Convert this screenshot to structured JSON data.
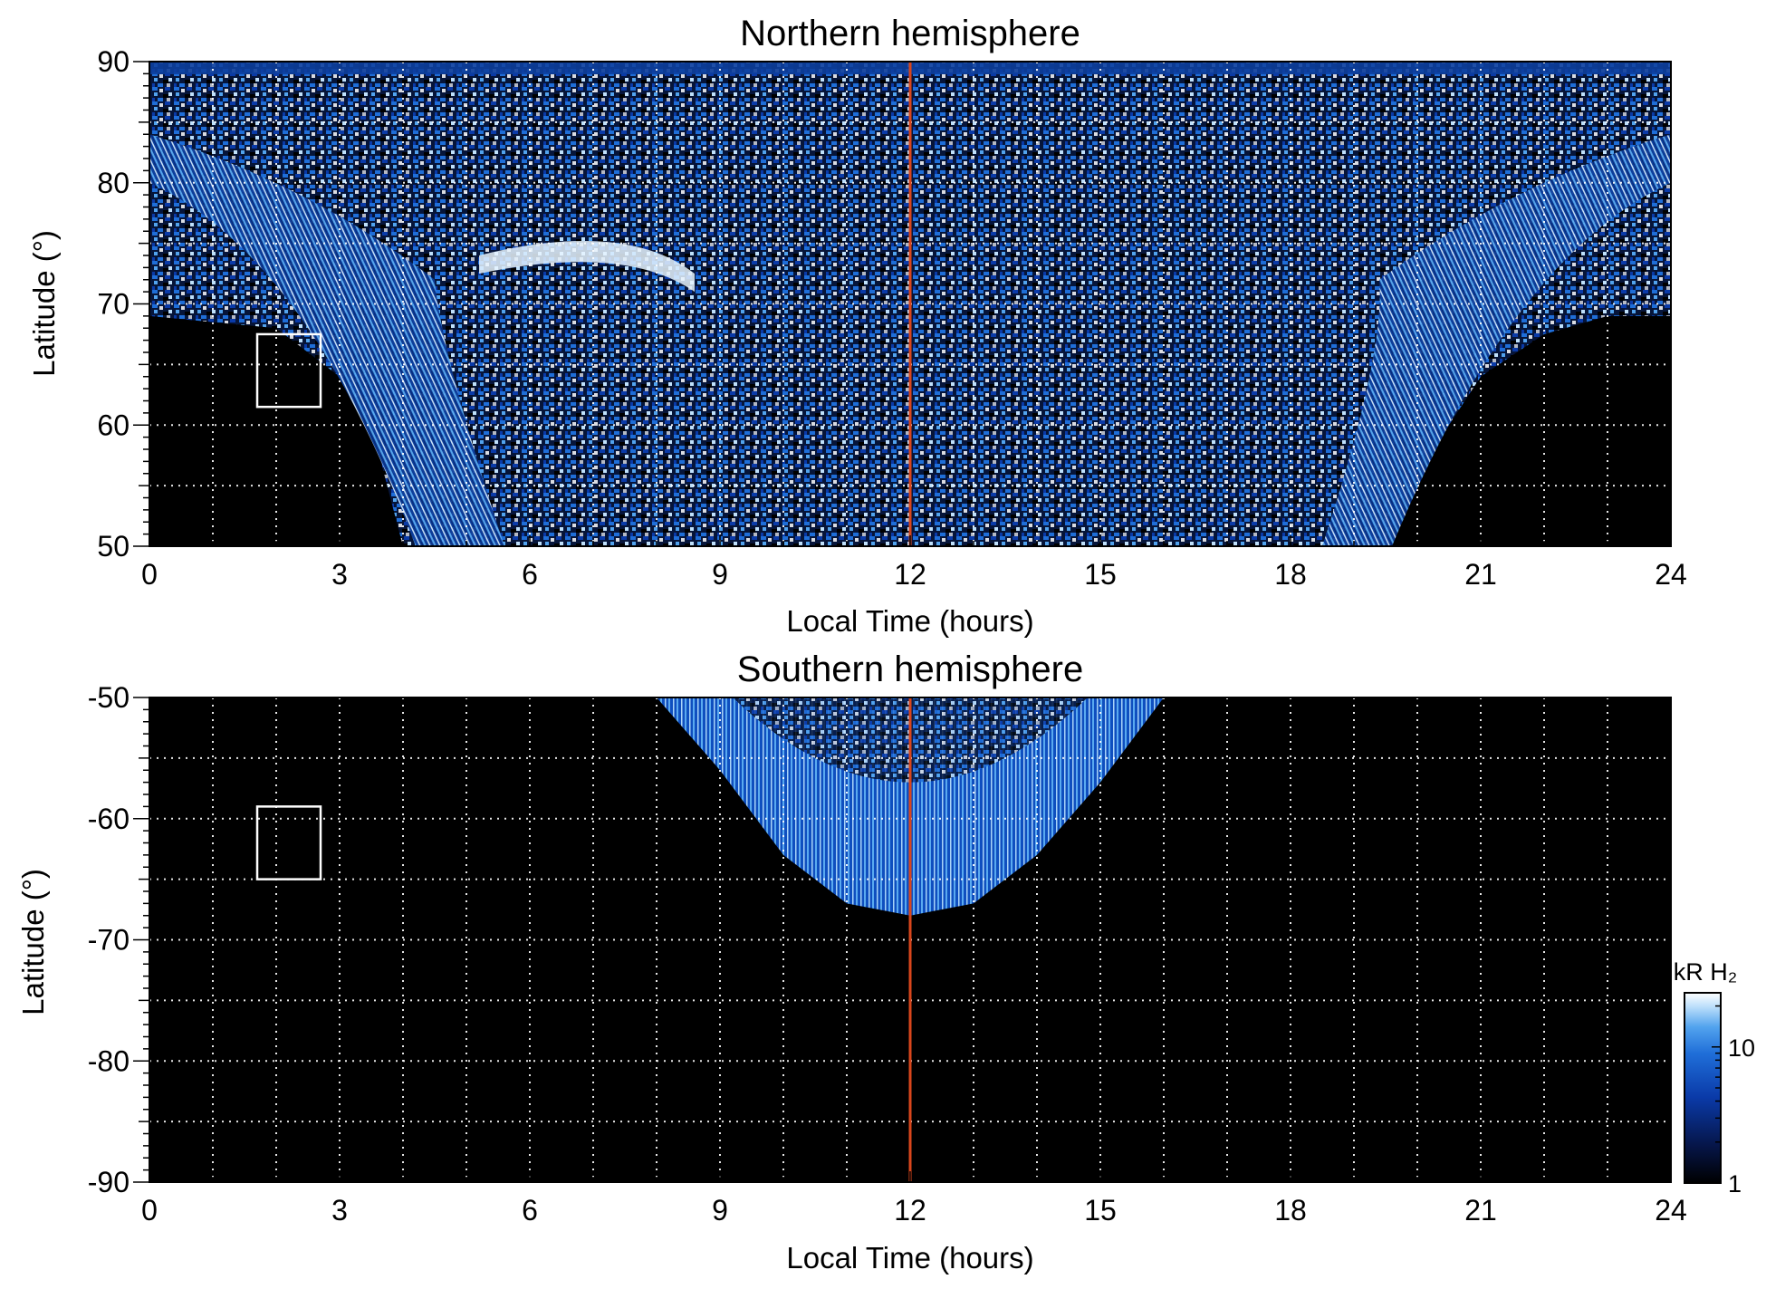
{
  "chart_data": [
    {
      "type": "heatmap",
      "title": "Northern hemisphere",
      "xlabel": "Local Time (hours)",
      "ylabel": "Latitude (°)",
      "xlim": [
        0,
        24
      ],
      "ylim": [
        50,
        90
      ],
      "x_ticks": [
        0,
        3,
        6,
        9,
        12,
        15,
        18,
        21,
        24
      ],
      "y_ticks": [
        50,
        60,
        70,
        80,
        90
      ],
      "grid": true,
      "reference_line": {
        "x": 12,
        "color": "#d9461c"
      },
      "boxes": [
        {
          "x": [
            1.7,
            2.7
          ],
          "y": [
            61.5,
            67.5
          ]
        }
      ],
      "emission_region": {
        "description": "coverage edge latitude vs local time",
        "x": [
          0,
          1,
          2,
          3,
          3.5,
          4,
          5,
          6,
          9,
          12,
          15,
          18,
          19,
          19.5,
          20,
          21,
          22,
          23,
          24
        ],
        "lower_edge_lat": [
          69,
          68.5,
          68,
          64,
          60,
          50,
          50,
          50,
          50,
          50,
          50,
          50,
          50,
          50,
          56,
          64,
          67.5,
          69,
          69
        ]
      }
    },
    {
      "type": "heatmap",
      "title": "Southern hemisphere",
      "xlabel": "Local Time (hours)",
      "ylabel": "Latitude (°)",
      "xlim": [
        0,
        24
      ],
      "ylim": [
        -90,
        -50
      ],
      "x_ticks": [
        0,
        3,
        6,
        9,
        12,
        15,
        18,
        21,
        24
      ],
      "y_ticks": [
        -90,
        -80,
        -70,
        -60,
        -50
      ],
      "grid": true,
      "reference_line": {
        "x": 12,
        "color": "#d9461c"
      },
      "boxes": [
        {
          "x": [
            1.7,
            2.7
          ],
          "y": [
            -65,
            -59
          ]
        }
      ],
      "emission_region": {
        "description": "coverage edge latitude vs local time",
        "x": [
          8,
          9,
          10,
          11,
          12,
          13,
          14,
          15,
          16
        ],
        "lower_edge_lat": [
          -50,
          -56,
          -63,
          -67,
          -68,
          -67,
          -63,
          -57,
          -50
        ]
      }
    }
  ],
  "colorbar": {
    "label": "kR H₂",
    "scale": "log",
    "range": [
      1,
      25
    ],
    "ticks": [
      1,
      10
    ],
    "colors": [
      "#000000",
      "#06164a",
      "#0a3aa8",
      "#1f6ed8",
      "#52a3ee",
      "#bfe0fb",
      "#ffffff"
    ]
  }
}
